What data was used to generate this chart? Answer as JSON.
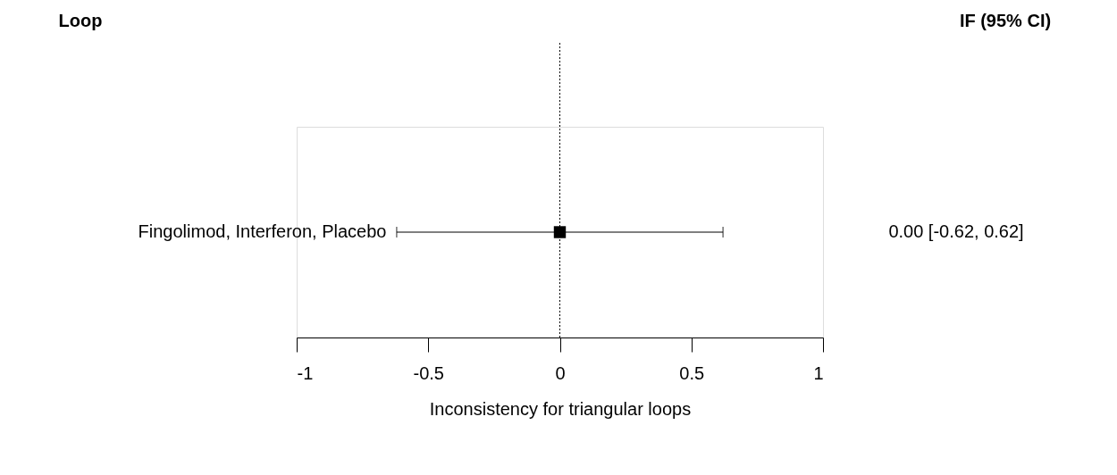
{
  "chart_data": {
    "type": "scatter",
    "orientation": "horizontal",
    "xlabel": "Inconsistency for triangular loops",
    "annotations": [
      "Loop",
      "IF (95% CI)",
      "0.00 [-0.62, 0.62]"
    ],
    "categories": [
      "Fingolimod,  Interferon, Placebo"
    ],
    "series": [
      {
        "color": "#000000",
        "values": [
          0.0
        ],
        "errors": [
          [
            -0.62,
            0.62
          ]
        ]
      }
    ],
    "xlim": [
      -1,
      1
    ],
    "xticks": [
      -1,
      -0.5,
      0,
      0.5,
      1
    ],
    "marker": "square",
    "grid": false,
    "ref_lines": [
      {
        "axis": "x",
        "value": 0,
        "line_style": "dotted",
        "color": "#000000"
      }
    ]
  }
}
